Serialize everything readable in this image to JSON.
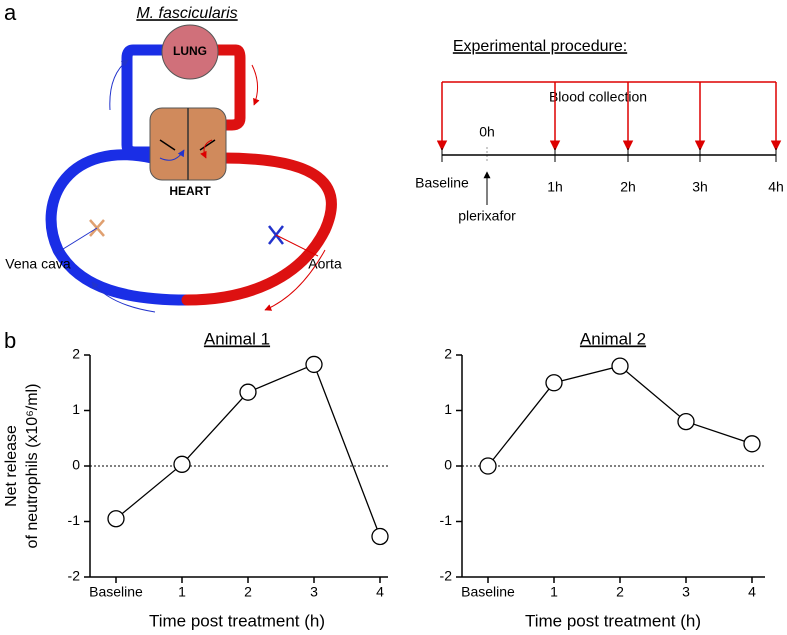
{
  "panels": {
    "a": "a",
    "b": "b"
  },
  "diagram": {
    "species": "M. fascicularis",
    "lung": "LUNG",
    "heart": "HEART",
    "vein": "Vena cava",
    "artery": "Aorta"
  },
  "procedure": {
    "title": "Experimental procedure:",
    "collection": "Blood collection",
    "zero": "0h",
    "drug": "plerixafor",
    "timepoints": [
      "Baseline",
      "1h",
      "2h",
      "3h",
      "4h"
    ]
  },
  "chart_data": [
    {
      "type": "line",
      "title": "Animal 1",
      "xlabel": "Time post treatment (h)",
      "ylabel": [
        "Net release",
        "of neutrophils (x10⁶/ml)"
      ],
      "categories": [
        "Baseline",
        "1",
        "2",
        "3",
        "4"
      ],
      "values": [
        -0.95,
        0.03,
        1.33,
        1.83,
        -1.27
      ],
      "color": "#000000",
      "ylim": [
        -2,
        2
      ],
      "yticks": [
        2,
        1,
        0,
        -1,
        -2
      ],
      "hline": 0
    },
    {
      "type": "line",
      "title": "Animal 2",
      "xlabel": "Time post treatment (h)",
      "categories": [
        "Baseline",
        "1",
        "2",
        "3",
        "4"
      ],
      "values": [
        0,
        1.5,
        1.8,
        0.8,
        0.4
      ],
      "color": "#000000",
      "ylim": [
        -2,
        2
      ],
      "yticks": [
        2,
        1,
        0,
        -1,
        -2
      ],
      "hline": 0
    }
  ]
}
